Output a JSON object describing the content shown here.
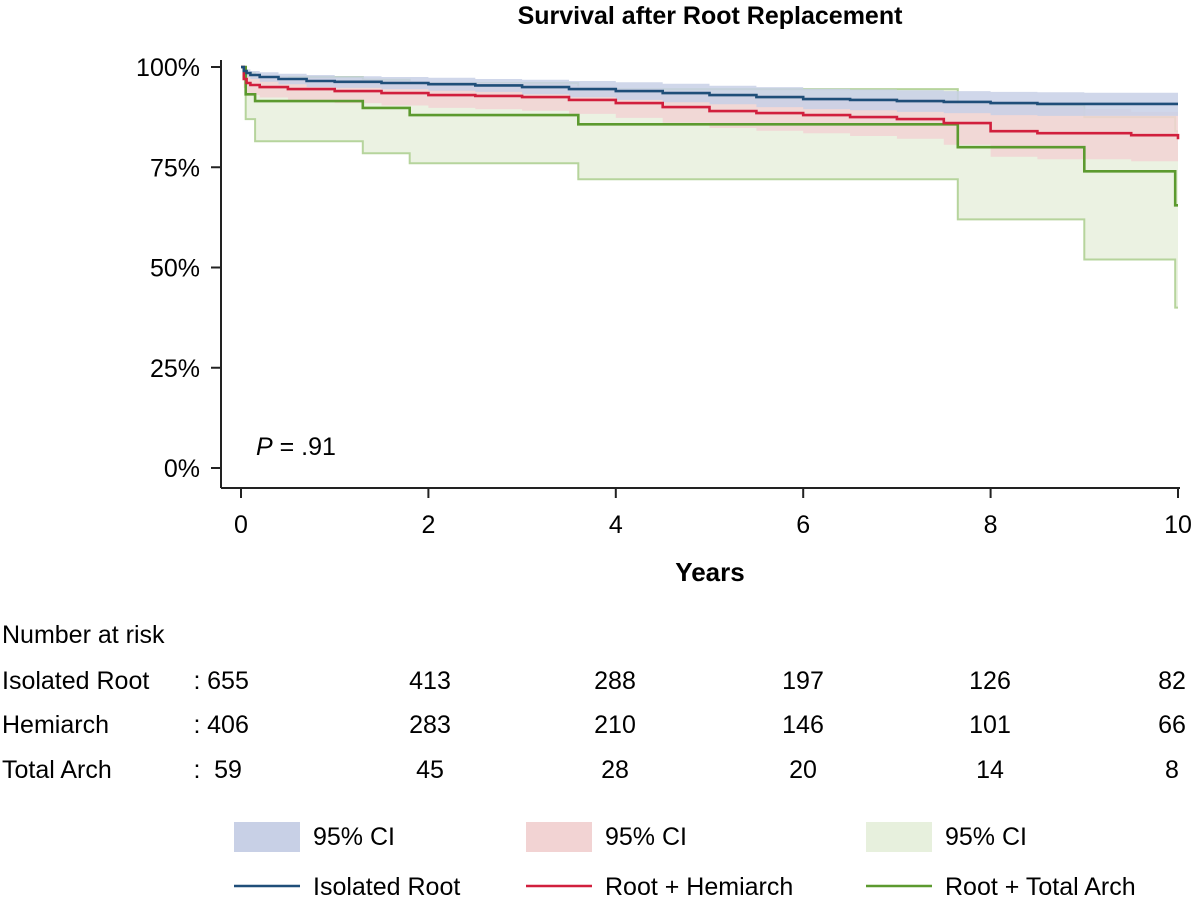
{
  "chart_data": {
    "type": "line",
    "subtype": "kaplan-meier",
    "title": "Survival after Root Replacement",
    "xlabel": "Years",
    "ylabel": "",
    "xlim": [
      0,
      10
    ],
    "ylim": [
      0,
      100
    ],
    "x_ticks": [
      0,
      2,
      4,
      6,
      8,
      10
    ],
    "x_tick_labels": [
      "0",
      "2",
      "4",
      "6",
      "8",
      "10"
    ],
    "y_ticks": [
      0,
      25,
      50,
      75,
      100
    ],
    "y_tick_labels": [
      "0%",
      "25%",
      "50%",
      "75%",
      "100%"
    ],
    "annotation": {
      "p_label": "P",
      "p_text": " = .91"
    },
    "series": [
      {
        "name": "Isolated Root",
        "color": "#1f4e79",
        "ci_color": "#c8d0e6",
        "ci_label": "95% CI",
        "x": [
          0,
          0.03,
          0.06,
          0.1,
          0.2,
          0.4,
          0.7,
          1.0,
          1.5,
          2.0,
          2.5,
          3.0,
          3.5,
          4.0,
          4.5,
          5.0,
          5.5,
          6.0,
          6.5,
          7.0,
          7.5,
          8.0,
          8.5,
          9.0,
          9.5,
          10.0
        ],
        "y": [
          100,
          99,
          98.5,
          98,
          97.5,
          97,
          96.5,
          96.3,
          96,
          95.7,
          95.4,
          95,
          94.5,
          94,
          93.5,
          93,
          92.5,
          92,
          91.8,
          91.5,
          91.3,
          91,
          90.8,
          90.8,
          90.8,
          90.8
        ],
        "ci_upper": [
          100,
          99.8,
          99.4,
          99,
          98.7,
          98.3,
          98,
          97.7,
          97.5,
          97.3,
          97,
          96.8,
          96.5,
          96.2,
          95.8,
          95.3,
          95,
          94.6,
          94.4,
          94.2,
          94,
          93.8,
          93.7,
          93.6,
          93.6,
          93.6
        ],
        "ci_lower": [
          100,
          98.2,
          97.5,
          97,
          96.3,
          95.7,
          95,
          94.8,
          94.5,
          94.1,
          93.8,
          93.2,
          92.5,
          91.8,
          91.2,
          90.7,
          90,
          89.5,
          89.2,
          88.8,
          88.5,
          88,
          87.8,
          87.8,
          87.8,
          87.8
        ]
      },
      {
        "name": "Root + Hemiarch",
        "color": "#d11f3d",
        "ci_color": "#f2d3d3",
        "ci_label": "95% CI",
        "x": [
          0,
          0.03,
          0.06,
          0.1,
          0.2,
          0.5,
          1.0,
          1.5,
          2.0,
          2.5,
          3.0,
          3.5,
          4.0,
          4.5,
          5.0,
          5.5,
          6.0,
          6.5,
          7.0,
          7.5,
          8.0,
          8.5,
          9.0,
          9.5,
          10.0
        ],
        "y": [
          100,
          97,
          96,
          95.5,
          95,
          94.5,
          94,
          93.5,
          93,
          92.8,
          92.5,
          91.8,
          91,
          90,
          89,
          88.5,
          88,
          87.5,
          87,
          86,
          84,
          83.5,
          83.5,
          83,
          82
        ],
        "ci_upper": [
          100,
          99,
          98.5,
          98,
          97.6,
          97.2,
          96.8,
          96.5,
          96.2,
          96,
          95.8,
          95.2,
          94.6,
          94,
          93.4,
          93,
          92.6,
          92.3,
          92,
          91.6,
          90.6,
          90,
          89.5,
          88.8,
          88.2
        ],
        "ci_lower": [
          100,
          94.8,
          93.6,
          93,
          92.4,
          91.6,
          91,
          90.4,
          89.8,
          89.5,
          89.1,
          88.3,
          87.3,
          86.1,
          84.8,
          84.1,
          83.5,
          82.8,
          82.1,
          80.6,
          77.6,
          77,
          77,
          76.5,
          75.5
        ]
      },
      {
        "name": "Root + Total Arch",
        "color": "#5c9a2f",
        "ci_color": "#e7f0dd",
        "ci_line_color": "#b6d49c",
        "ci_label": "95% CI",
        "x": [
          0,
          0.05,
          0.15,
          1.3,
          1.8,
          3.6,
          7.65,
          9.0,
          9.97,
          10.0
        ],
        "y": [
          100,
          93.2,
          91.5,
          89.8,
          88,
          85.7,
          80,
          74,
          65.5,
          65.5
        ],
        "ci_upper": [
          100,
          98.5,
          97.5,
          96.8,
          96,
          94.5,
          90.5,
          87.5,
          84,
          84
        ],
        "ci_lower": [
          100,
          87,
          81.5,
          78.5,
          76,
          72,
          62,
          52,
          40,
          40
        ]
      }
    ],
    "risk_table": {
      "heading": "Number at risk",
      "times": [
        0,
        2,
        4,
        6,
        8,
        10
      ],
      "rows": [
        {
          "label": "Isolated Root",
          "sep": ":",
          "values": [
            "655",
            "413",
            "288",
            "197",
            "126",
            "82"
          ]
        },
        {
          "label": "Hemiarch",
          "sep": ":",
          "values": [
            "406",
            "283",
            "210",
            "146",
            "101",
            "66"
          ]
        },
        {
          "label": "Total Arch",
          "sep": ":",
          "values": [
            "59",
            "45",
            "28",
            "20",
            "14",
            "8"
          ]
        }
      ]
    },
    "legend": {
      "position": "bottom",
      "ci_label": "95% CI",
      "entries": [
        "Isolated Root",
        "Root + Hemiarch",
        "Root + Total Arch"
      ]
    }
  }
}
